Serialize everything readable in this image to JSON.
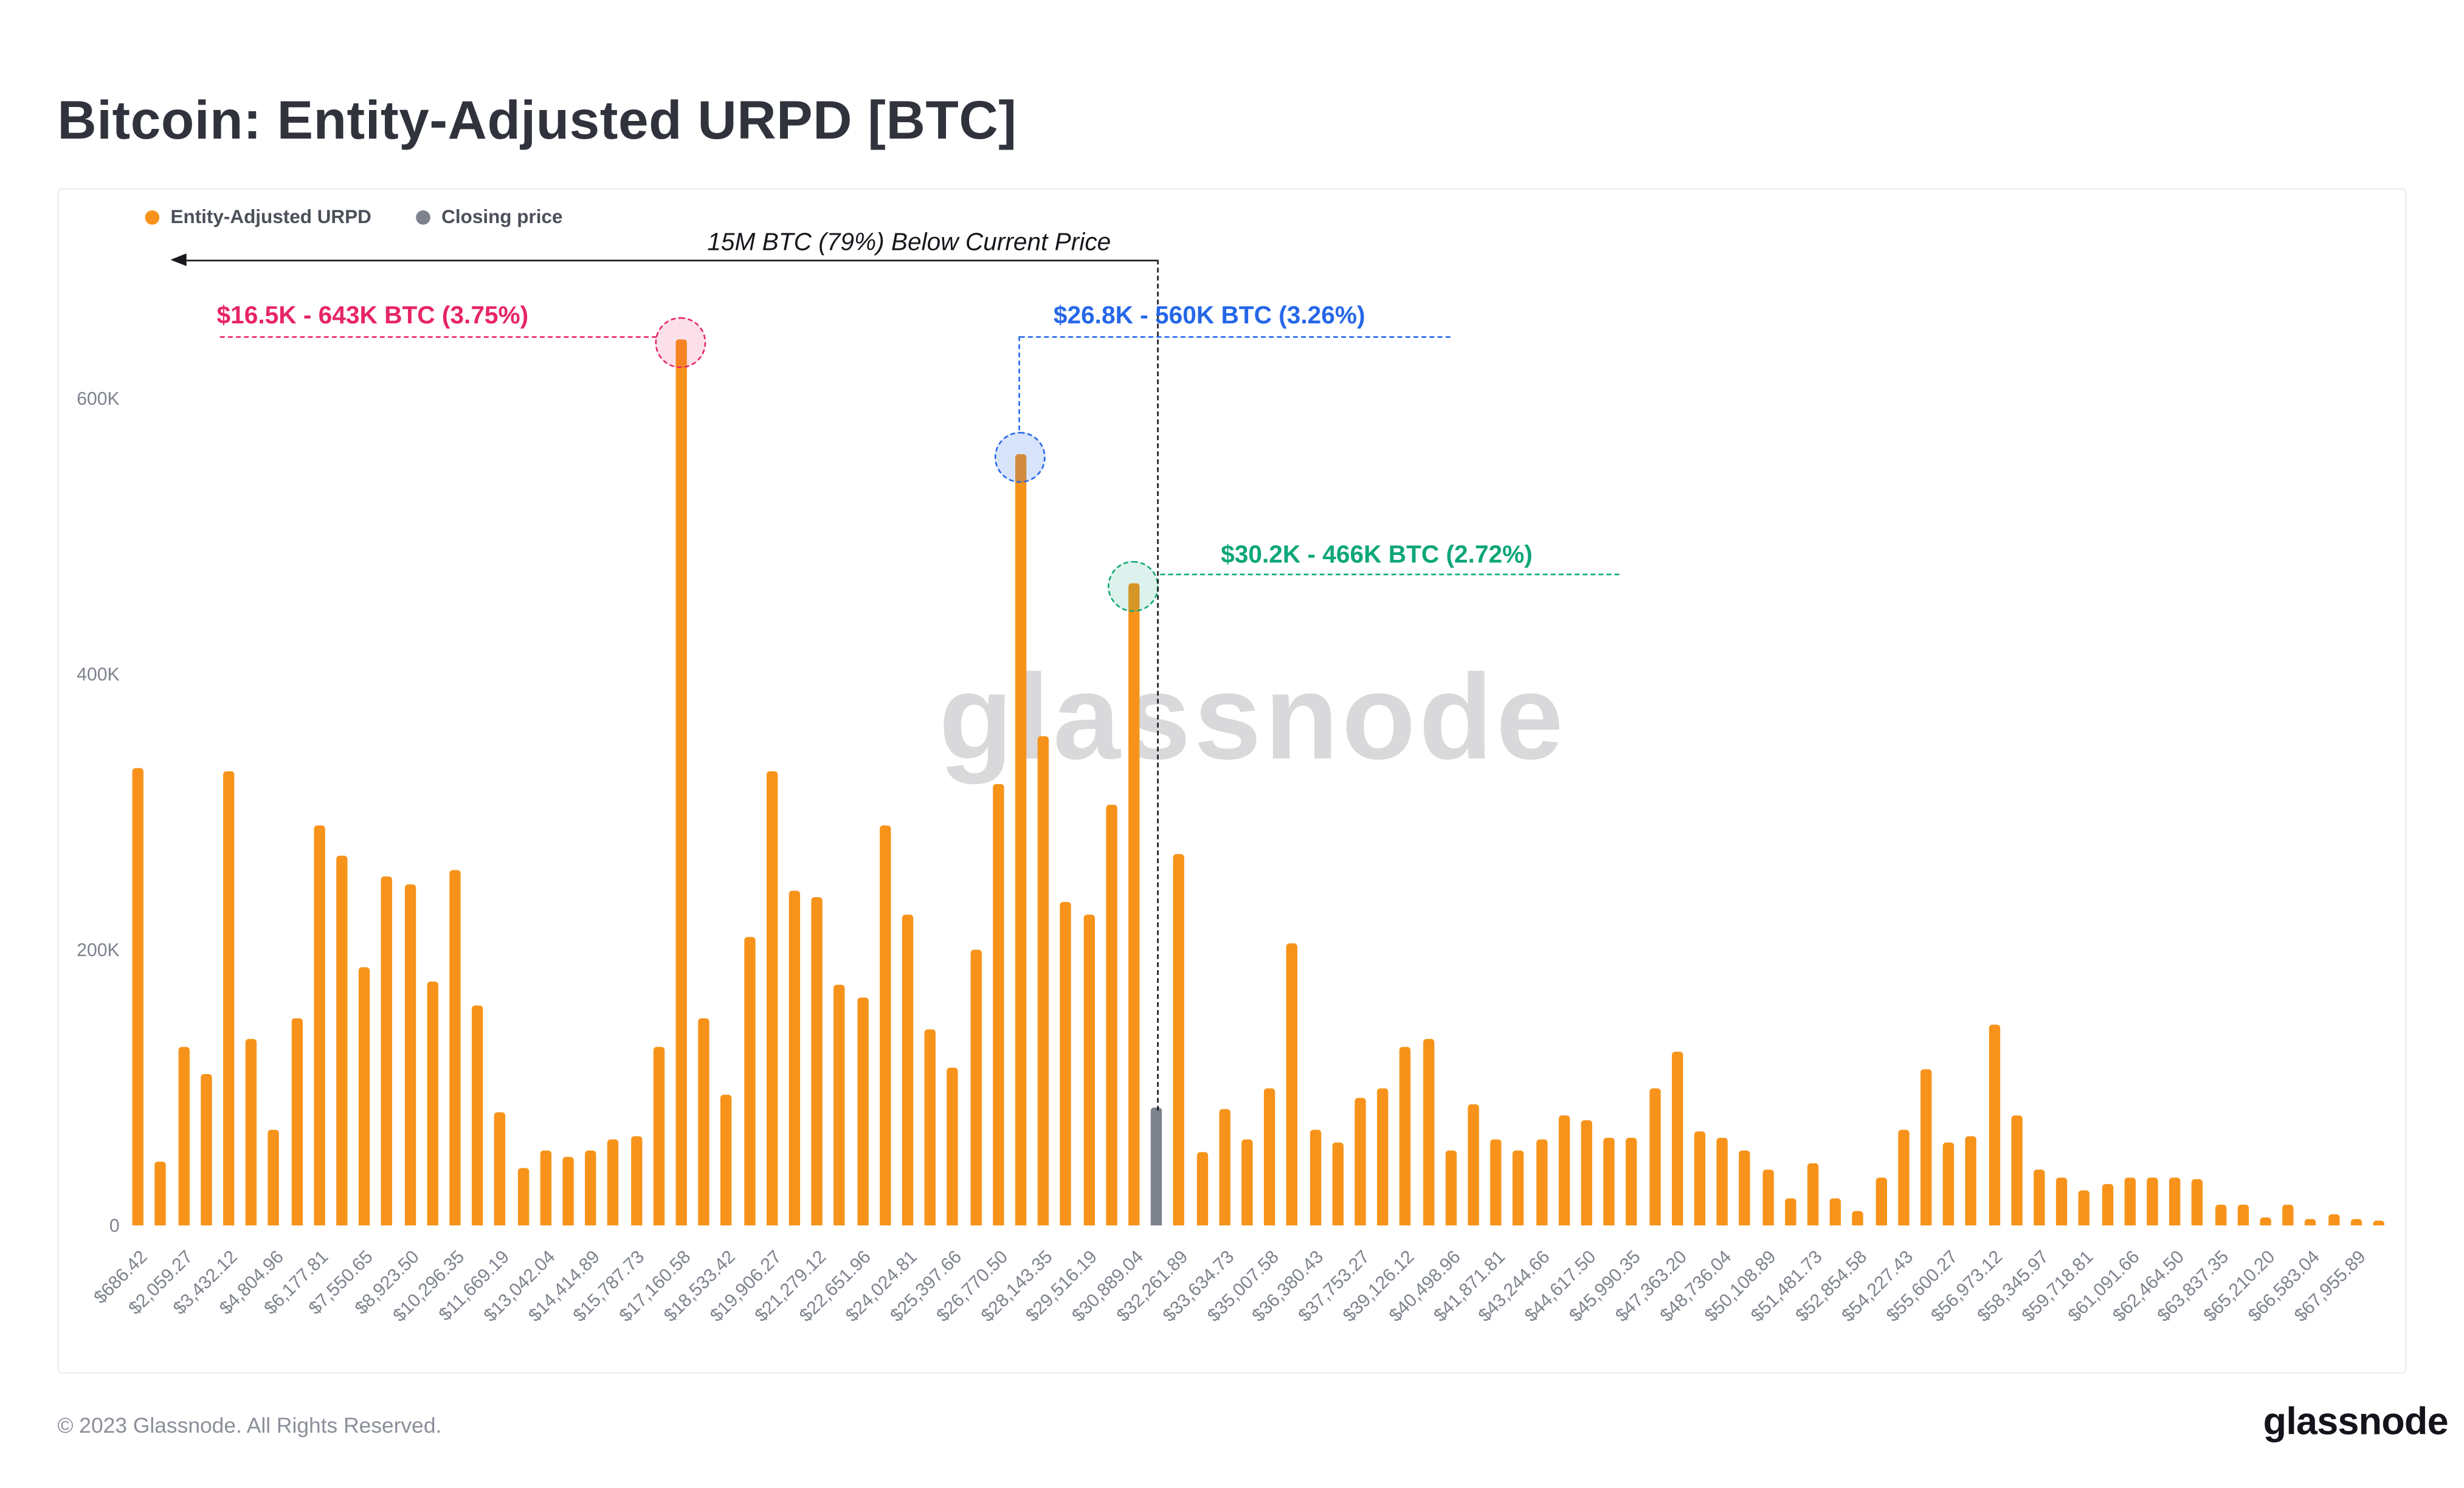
{
  "page": {
    "title": "Bitcoin: Entity-Adjusted URPD [BTC]",
    "watermark": "glassnode",
    "footer": {
      "copyright": "© 2023 Glassnode. All Rights Reserved.",
      "brand": "glassnode"
    }
  },
  "legend": {
    "series1": "Entity-Adjusted URPD",
    "series2": "Closing price"
  },
  "annotations": {
    "below_price_arrow": "15M BTC (79%) Below Current Price"
  },
  "chart_data": {
    "type": "bar",
    "title": "Bitcoin: Entity-Adjusted URPD [BTC]",
    "unit": "BTC",
    "ylim": [
      0,
      700000
    ],
    "yticks": [
      {
        "value": 0,
        "label": "0"
      },
      {
        "value": 200000,
        "label": "200K"
      },
      {
        "value": 400000,
        "label": "400K"
      },
      {
        "value": 600000,
        "label": "600K"
      }
    ],
    "bar_color": "#F7931A",
    "closing_bar_color": "#7D828C",
    "closing_price_bar_index": 45,
    "x_tick_every_n_bars": 2,
    "x_tick_labels": [
      "$686.42",
      "$2,059.27",
      "$3,432.12",
      "$4,804.96",
      "$6,177.81",
      "$7,550.65",
      "$8,923.50",
      "$10,296.35",
      "$11,669.19",
      "$13,042.04",
      "$14,414.89",
      "$15,787.73",
      "$17,160.58",
      "$18,533.42",
      "$19,906.27",
      "$21,279.12",
      "$22,651.96",
      "$24,024.81",
      "$25,397.66",
      "$26,770.50",
      "$28,143.35",
      "$29,516.19",
      "$30,889.04",
      "$32,261.89",
      "$33,634.73",
      "$35,007.58",
      "$36,380.43",
      "$37,753.27",
      "$39,126.12",
      "$40,498.96",
      "$41,871.81",
      "$43,244.66",
      "$44,617.50",
      "$45,990.35",
      "$47,363.20",
      "$48,736.04",
      "$50,108.89",
      "$51,481.73",
      "$52,854.58",
      "$54,227.43",
      "$55,600.27",
      "$56,973.12",
      "$58,345.97",
      "$59,718.81",
      "$61,091.66",
      "$62,464.50",
      "$63,837.35",
      "$65,210.20",
      "$66,583.04",
      "$67,955.89"
    ],
    "values": [
      332000,
      46000,
      130000,
      110000,
      330000,
      135000,
      70000,
      150000,
      290000,
      268000,
      188000,
      253000,
      248000,
      177000,
      258000,
      160000,
      82000,
      42000,
      55000,
      50000,
      55000,
      62000,
      65000,
      130000,
      643000,
      150000,
      95000,
      210000,
      330000,
      243000,
      238000,
      175000,
      165000,
      290000,
      226000,
      142000,
      115000,
      200000,
      320000,
      560000,
      355000,
      235000,
      226000,
      305000,
      466000,
      86000,
      270000,
      53000,
      85000,
      63000,
      100000,
      205000,
      70000,
      60000,
      93000,
      100000,
      130000,
      136000,
      55000,
      88000,
      63000,
      55000,
      62000,
      80000,
      76000,
      64000,
      64000,
      100000,
      126000,
      68000,
      64000,
      55000,
      40000,
      20000,
      45000,
      20000,
      10000,
      35000,
      70000,
      114000,
      60000,
      65000,
      146000,
      80000,
      40000,
      35000,
      25000,
      30000,
      35000,
      35000,
      35000,
      34000,
      15000,
      15000,
      6000,
      15000,
      5000,
      8000,
      5000,
      4000
    ],
    "highlights": [
      {
        "key": "pink",
        "bar_index": 24,
        "label": "$16.5K - 643K BTC (3.75%)",
        "price": "$16.5K",
        "btc": 643000,
        "percent": 3.75,
        "color": "#E72565",
        "fill": "rgba(231,37,101,0.14)"
      },
      {
        "key": "blue",
        "bar_index": 39,
        "label": "$26.8K - 560K BTC (3.26%)",
        "price": "$26.8K",
        "btc": 560000,
        "percent": 3.26,
        "color": "#2567E8",
        "fill": "rgba(37,103,232,0.18)"
      },
      {
        "key": "green",
        "bar_index": 44,
        "label": "$30.2K - 466K BTC (2.72%)",
        "price": "$30.2K",
        "btc": 466000,
        "percent": 2.72,
        "color": "#0DA678",
        "fill": "rgba(13,166,120,0.14)"
      }
    ]
  }
}
